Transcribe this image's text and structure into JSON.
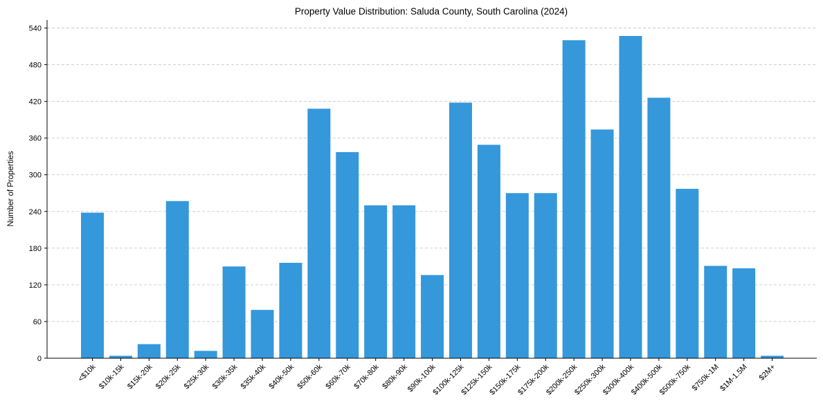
{
  "chart_data": {
    "type": "bar",
    "title": "Property Value Distribution: Saluda County, South Carolina (2024)",
    "xlabel": "",
    "ylabel": "Number of Properties",
    "ylim": [
      0,
      553
    ],
    "yticks": [
      0,
      60,
      120,
      180,
      240,
      300,
      360,
      420,
      480,
      540
    ],
    "grid": "y-dashed",
    "color": "#3498db",
    "categories": [
      "<$10k",
      "$10k-15k",
      "$15k-20k",
      "$20k-25k",
      "$25k-30k",
      "$30k-35k",
      "$35k-40k",
      "$40k-50k",
      "$50k-60k",
      "$60k-70k",
      "$70k-80k",
      "$80k-90k",
      "$90k-100k",
      "$100k-125k",
      "$125k-150k",
      "$150k-175k",
      "$175k-200k",
      "$200k-250k",
      "$250k-300k",
      "$300k-400k",
      "$400k-500k",
      "$500k-750k",
      "$750k-1M",
      "$1M-1.5M",
      "$2M+"
    ],
    "values": [
      238,
      4,
      23,
      257,
      12,
      150,
      79,
      156,
      408,
      337,
      250,
      250,
      136,
      418,
      349,
      270,
      270,
      520,
      374,
      527,
      426,
      277,
      151,
      147,
      4
    ]
  }
}
